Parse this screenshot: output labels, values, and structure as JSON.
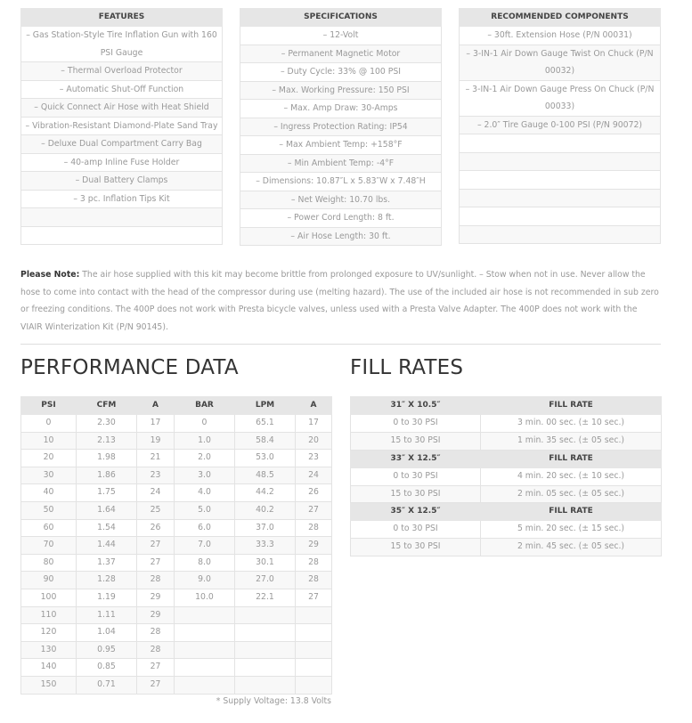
{
  "features": {
    "header": "FEATURES",
    "items": [
      "– Gas Station-Style Tire Inflation Gun with 160 PSI Gauge",
      "– Thermal Overload Protector",
      "– Automatic Shut-Off Function",
      "– Quick Connect Air Hose with Heat Shield",
      "– Vibration-Resistant Diamond-Plate Sand Tray",
      "– Deluxe Dual Compartment Carry Bag",
      "– 40-amp Inline Fuse Holder",
      "– Dual Battery Clamps",
      "– 3 pc. Inflation Tips Kit",
      "",
      ""
    ]
  },
  "specifications": {
    "header": "SPECIFICATIONS",
    "items": [
      "– 12-Volt",
      "– Permanent Magnetic Motor",
      "– Duty Cycle: 33% @ 100 PSI",
      "– Max. Working Pressure: 150 PSI",
      "– Max. Amp Draw: 30-Amps",
      "– Ingress Protection Rating: IP54",
      "– Max Ambient Temp: +158°F",
      "– Min Ambient Temp: -4°F",
      "– Dimensions: 10.87″L x 5.83″W x 7.48″H",
      "– Net Weight: 10.70 lbs.",
      "– Power Cord Length: 8 ft.",
      "– Air Hose Length: 30 ft."
    ]
  },
  "recommended": {
    "header": "RECOMMENDED COMPONENTS",
    "items": [
      "– 30ft. Extension Hose (P/N 00031)",
      "– 3-IN-1 Air Down Gauge Twist On Chuck (P/N 00032)",
      "– 3-IN-1 Air Down Gauge Press On Chuck (P/N 00033)",
      "– 2.0″ Tire Gauge 0-100 PSI (P/N 90072)",
      "",
      "",
      "",
      "",
      "",
      ""
    ]
  },
  "note": {
    "label": "Please Note:",
    "text": " The air hose supplied with this kit may become brittle from prolonged exposure to UV/sunlight. – Stow when not in use. Never allow the hose to come into contact with the head of the compressor during use (melting hazard). The use of the included air hose is not recommended in sub zero or freezing conditions. The 400P does not work with Presta bicycle valves, unless used with a Presta Valve Adapter. The 400P does not work with the VIAIR Winterization Kit (P/N 90145)."
  },
  "performance": {
    "title": "PERFORMANCE DATA",
    "columns": [
      "PSI",
      "CFM",
      "A",
      "BAR",
      "LPM",
      "A"
    ],
    "rows": [
      [
        "0",
        "2.30",
        "17",
        "0",
        "65.1",
        "17"
      ],
      [
        "10",
        "2.13",
        "19",
        "1.0",
        "58.4",
        "20"
      ],
      [
        "20",
        "1.98",
        "21",
        "2.0",
        "53.0",
        "23"
      ],
      [
        "30",
        "1.86",
        "23",
        "3.0",
        "48.5",
        "24"
      ],
      [
        "40",
        "1.75",
        "24",
        "4.0",
        "44.2",
        "26"
      ],
      [
        "50",
        "1.64",
        "25",
        "5.0",
        "40.2",
        "27"
      ],
      [
        "60",
        "1.54",
        "26",
        "6.0",
        "37.0",
        "28"
      ],
      [
        "70",
        "1.44",
        "27",
        "7.0",
        "33.3",
        "29"
      ],
      [
        "80",
        "1.37",
        "27",
        "8.0",
        "30.1",
        "28"
      ],
      [
        "90",
        "1.28",
        "28",
        "9.0",
        "27.0",
        "28"
      ],
      [
        "100",
        "1.19",
        "29",
        "10.0",
        "22.1",
        "27"
      ],
      [
        "110",
        "1.11",
        "29",
        "",
        "",
        ""
      ],
      [
        "120",
        "1.04",
        "28",
        "",
        "",
        ""
      ],
      [
        "130",
        "0.95",
        "28",
        "",
        "",
        ""
      ],
      [
        "140",
        "0.85",
        "27",
        "",
        "",
        ""
      ],
      [
        "150",
        "0.71",
        "27",
        "",
        "",
        ""
      ]
    ],
    "footnote": "* Supply Voltage: 13.8 Volts"
  },
  "fill_rates": {
    "title": "FILL RATES",
    "groups": [
      {
        "tire": "31″ X 10.5″",
        "header": "FILL RATE",
        "rows": [
          [
            "0 to 30 PSI",
            "3 min. 00 sec. (± 10 sec.)"
          ],
          [
            "15 to 30 PSI",
            "1 min. 35 sec. (± 05 sec.)"
          ]
        ]
      },
      {
        "tire": "33″ X 12.5″",
        "header": "FILL RATE",
        "rows": [
          [
            "0 to 30 PSI",
            "4 min. 20 sec. (± 10 sec.)"
          ],
          [
            "15 to 30 PSI",
            "2 min. 05 sec. (± 05 sec.)"
          ]
        ]
      },
      {
        "tire": "35″ X 12.5″",
        "header": "FILL RATE",
        "rows": [
          [
            "0 to 30 PSI",
            "5 min. 20 sec. (± 15 sec.)"
          ],
          [
            "15 to 30 PSI",
            "2 min. 45 sec. (± 05 sec.)"
          ]
        ]
      }
    ]
  }
}
